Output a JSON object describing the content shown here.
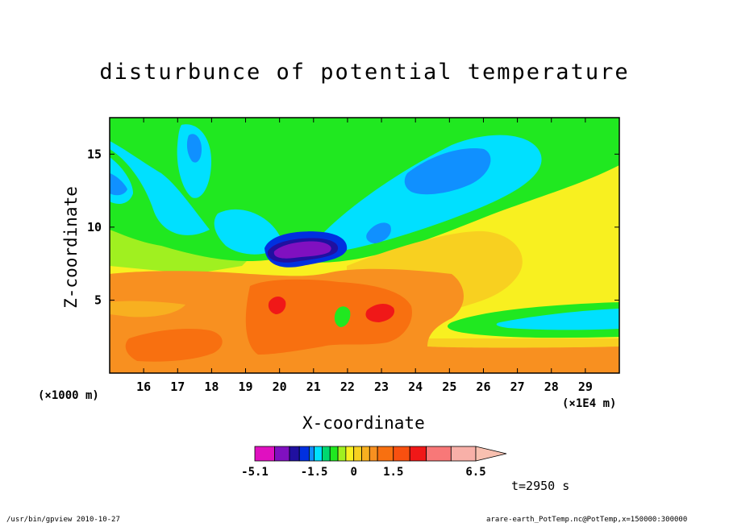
{
  "chart_data": {
    "type": "heatmap",
    "title": "disturbunce of potential temperature",
    "xlabel": "X-coordinate",
    "ylabel": "Z-coordinate",
    "x_unit_left": "(×1000 m)",
    "x_unit_right": "(×1E4 m)",
    "x_ticks": [
      "16",
      "17",
      "18",
      "19",
      "20",
      "21",
      "22",
      "23",
      "24",
      "25",
      "26",
      "27",
      "28",
      "29"
    ],
    "x_tick_values": [
      16,
      17,
      18,
      19,
      20,
      21,
      22,
      23,
      24,
      25,
      26,
      27,
      28,
      29
    ],
    "xlim": [
      15,
      30
    ],
    "y_ticks": [
      "5",
      "10",
      "15"
    ],
    "y_tick_values": [
      5,
      10,
      15
    ],
    "ylim": [
      0,
      17.5
    ],
    "colorbar": {
      "labels": [
        "-5.1",
        "-1.5",
        "0",
        "1.5",
        "6.5"
      ],
      "label_values": [
        -5.1,
        -1.5,
        0,
        1.5,
        6.5
      ],
      "levels": [
        -5.1,
        -3.9,
        -3.0,
        -2.4,
        -1.8,
        -1.5,
        -1.2,
        -0.9,
        -0.6,
        -0.3,
        0,
        0.3,
        0.6,
        0.9,
        1.5,
        2.5,
        3.5,
        5.0,
        6.5
      ],
      "colors": [
        "#e010c0",
        "#8010c0",
        "#2010a0",
        "#0030e0",
        "#1090ff",
        "#00e0ff",
        "#00d870",
        "#20e820",
        "#a0f020",
        "#f8f020",
        "#f8d020",
        "#f8b020",
        "#f89020",
        "#f87010",
        "#f85010",
        "#f01818",
        "#f87878",
        "#f8b0a8"
      ],
      "above_color": "#f8c0b0"
    },
    "grid": false,
    "annotation": "t=2950 s"
  },
  "footer": {
    "left": "/usr/bin/gpview   2010-10-27",
    "right": "arare-earth_PotTemp.nc@PotTemp,x=150000:300000"
  }
}
